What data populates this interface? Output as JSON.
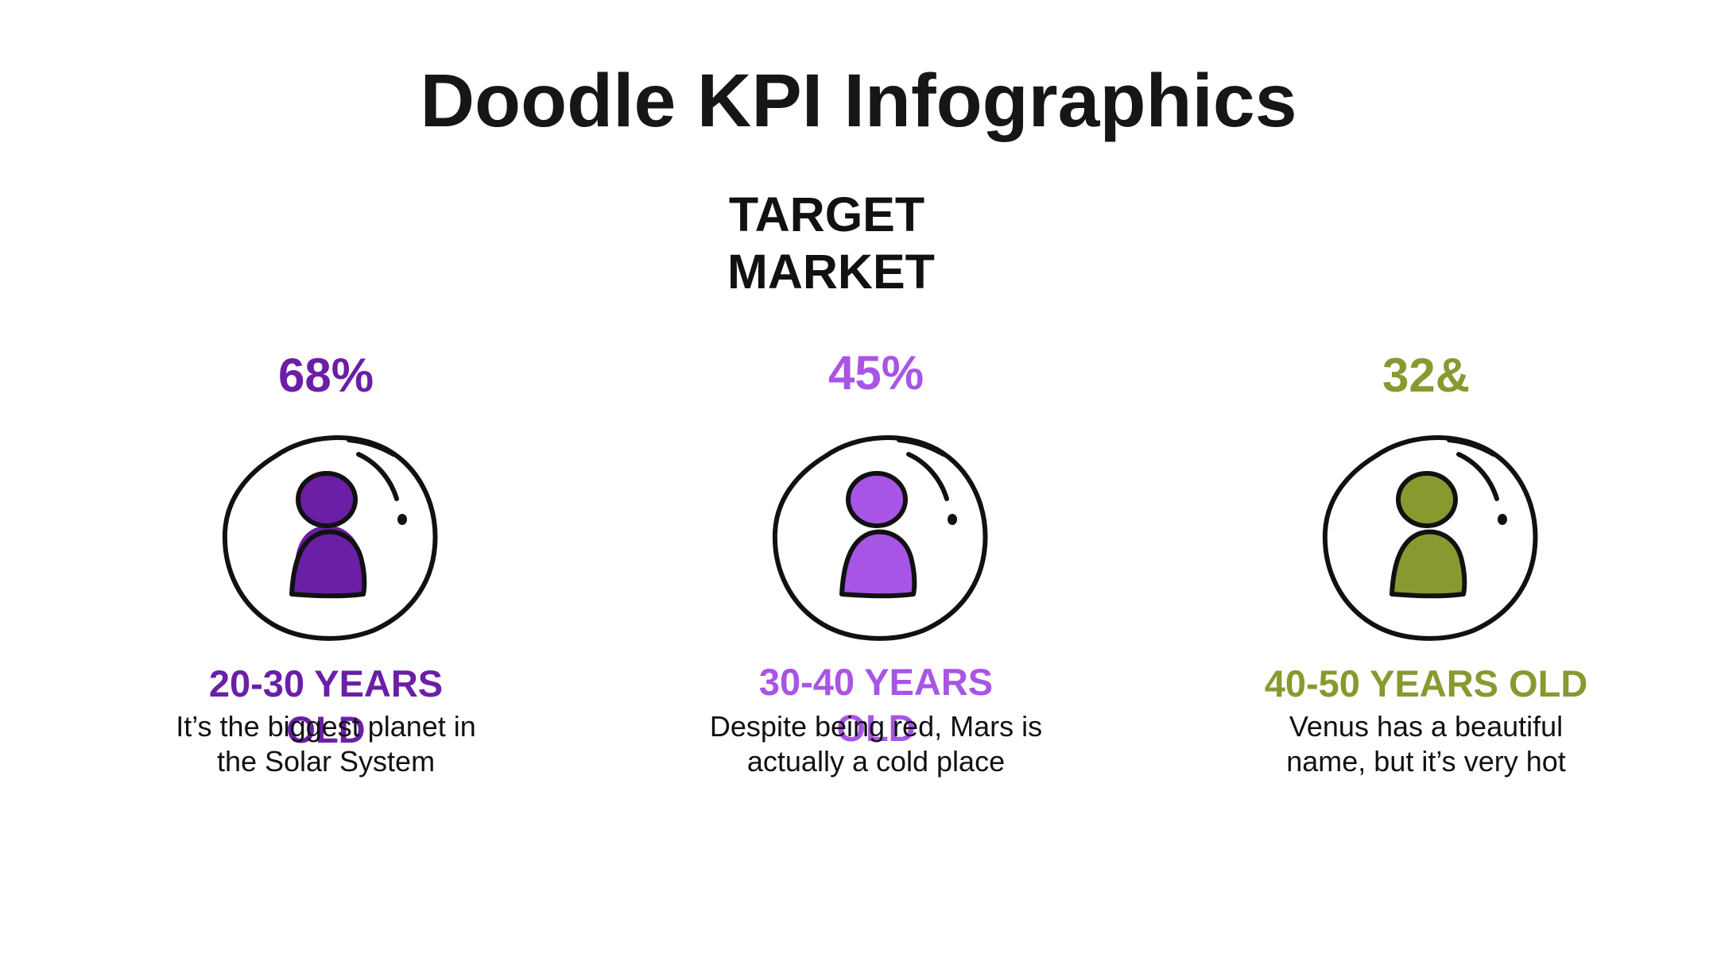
{
  "slide": {
    "title": "Doodle KPI Infographics",
    "subtitle_line1": "TARGET",
    "subtitle_line2": "MARKET"
  },
  "kpis": [
    {
      "value": "68%",
      "label": "20-30 YEARS OLD",
      "description_line1": "It’s the biggest planet in",
      "description_line2": "the Solar System",
      "color": "#6a1fa6",
      "icon": "person-icon"
    },
    {
      "value": "45%",
      "label": "30-40 YEARS OLD",
      "description_line1": "Despite being red, Mars is",
      "description_line2": "actually a cold place",
      "color": "#a855e6",
      "icon": "person-icon"
    },
    {
      "value": "32&",
      "label": "40-50 YEARS OLD",
      "description_line1": "Venus has a beautiful",
      "description_line2": "name, but it’s very hot",
      "color": "#869a2f",
      "icon": "person-icon"
    }
  ]
}
